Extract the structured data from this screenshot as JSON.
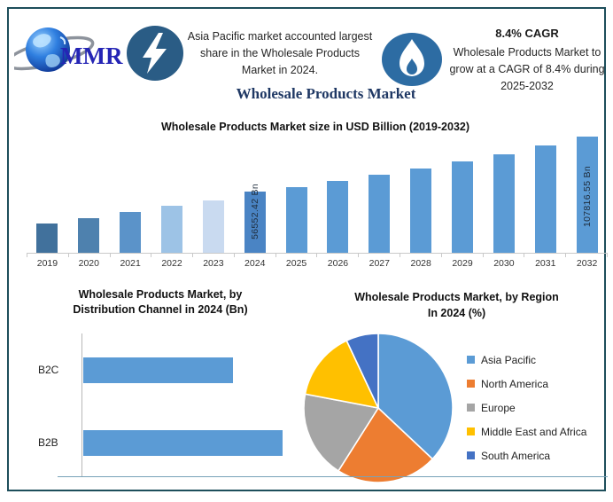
{
  "colors": {
    "frame_border": "#1d4e5b",
    "primary_bar": "#5b9bd5",
    "title_navy": "#1f3864",
    "lightning_circle": "#2a5c85",
    "flame_circle": "#2d6ca3",
    "logo_text_blue": "#2525b5"
  },
  "header": {
    "logo_text": "MMR",
    "highlight1": "Asia Pacific market accounted largest share in the Wholesale Products Market in 2024.",
    "highlight2_title": "8.4% CAGR",
    "highlight2": "Wholesale Products Market to grow at a CAGR of 8.4% during 2025-2032"
  },
  "main_title": "Wholesale Products Market",
  "chart_data": [
    {
      "type": "bar",
      "title": "Wholesale Products Market size in USD Billion (2019-2032)",
      "categories": [
        "2019",
        "2020",
        "2021",
        "2022",
        "2023",
        "2024",
        "2025",
        "2026",
        "2027",
        "2028",
        "2029",
        "2030",
        "2031",
        "2032"
      ],
      "values": [
        27500,
        31800,
        37600,
        43400,
        48900,
        56552.42,
        61302.83,
        66452.27,
        72034.26,
        78085.14,
        84644.29,
        91754.41,
        99461.78,
        107816.55
      ],
      "value_labels": {
        "2024": "56552.42 Bn",
        "2032": "107816.55 Bn"
      },
      "bar_colors": [
        "#41719C",
        "#4E81AE",
        "#5B93C9",
        "#9DC3E6",
        "#C9DAF0",
        "#4A84C4"
      ],
      "default_bar_color": "#5B9BD5",
      "xlabel": "",
      "ylabel": "USD Billion",
      "ylim": [
        0,
        110000
      ],
      "grid": false
    },
    {
      "type": "bar",
      "orientation": "horizontal",
      "title": "Wholesale Products Market, by Distribution Channel in 2024 (Bn)",
      "title_line1": "Wholesale Products Market, by",
      "title_line2": "Distribution Channel in 2024 (Bn)",
      "categories": [
        "B2C",
        "B2B"
      ],
      "relative_values": [
        0.75,
        1.0
      ],
      "bar_color": "#5B9BD5",
      "note": "no numeric axis labels shown"
    },
    {
      "type": "pie",
      "title": "Wholesale Products Market, by Region In 2024 (%)",
      "title_line1": "Wholesale Products Market, by Region",
      "title_line2": "In 2024 (%)",
      "labels": [
        "Asia Pacific",
        "North America",
        "Europe",
        "Middle East and Africa",
        "South America"
      ],
      "values": [
        37,
        22,
        19,
        15,
        7
      ],
      "colors": [
        "#5B9BD5",
        "#ED7D31",
        "#A5A5A5",
        "#FFC000",
        "#4472C4"
      ],
      "legend_position": "right",
      "start_angle_deg": 0,
      "clockwise": true
    }
  ]
}
